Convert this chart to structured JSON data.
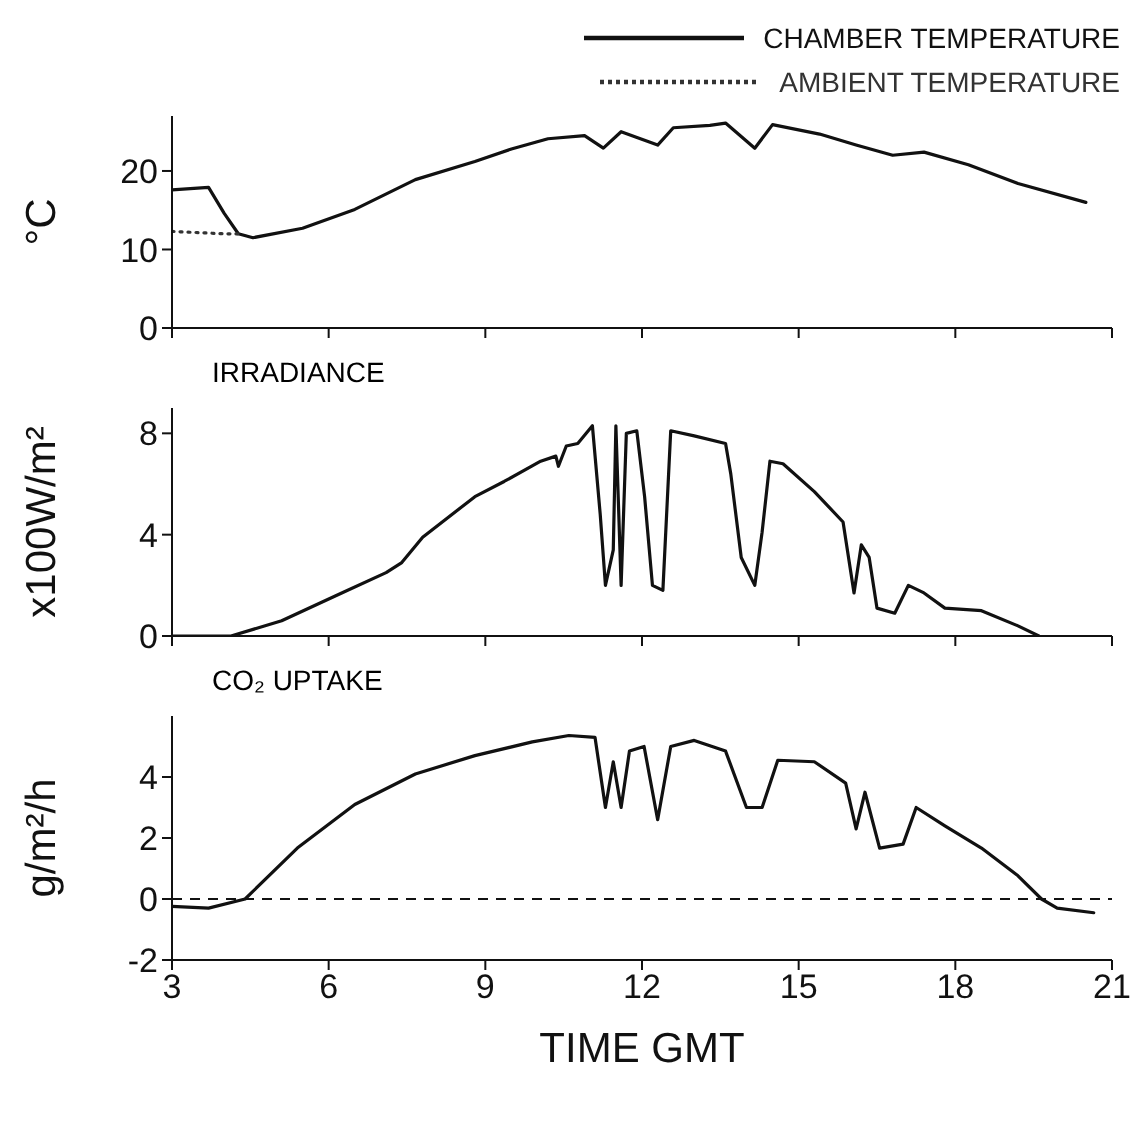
{
  "chart_data": [
    {
      "type": "line",
      "ylabel": "°C",
      "xlim": [
        3,
        21
      ],
      "xticks": [
        3,
        6,
        9,
        12,
        15,
        18,
        21
      ],
      "ylim": [
        0,
        27
      ],
      "yticks": [
        0,
        10,
        20
      ],
      "tick_labels": "y",
      "legend": "top right",
      "grid": false,
      "marker": "none",
      "series": [
        {
          "name": "CHAMBER TEMPERATURE",
          "color": "#111111",
          "line_style": "solid",
          "x": [
            3,
            3.7,
            4.0,
            4.27,
            4.55,
            5.5,
            6.5,
            7.66,
            8.8,
            9.5,
            10.2,
            10.9,
            11.26,
            11.6,
            11.97,
            12.3,
            12.6,
            13.3,
            13.6,
            14.16,
            14.5,
            15.4,
            16.1,
            16.8,
            17.4,
            18.25,
            19.2,
            20.5
          ],
          "values": [
            17.6,
            17.9,
            14.6,
            12.0,
            11.5,
            12.7,
            15.1,
            18.9,
            21.2,
            22.8,
            24.1,
            24.5,
            22.9,
            25.0,
            24.1,
            23.3,
            25.5,
            25.8,
            26.1,
            22.9,
            25.9,
            24.7,
            23.3,
            22.0,
            22.4,
            20.8,
            18.4,
            16.0
          ]
        },
        {
          "name": "AMBIENT TEMPERATURE",
          "color": "#333333",
          "line_style": "dotted",
          "x": [
            3,
            4.0,
            4.27
          ],
          "values": [
            12.3,
            12.0,
            12.0
          ]
        }
      ]
    },
    {
      "type": "line",
      "title": "IRRADIANCE",
      "ylabel": "x100W/m²",
      "xlim": [
        3,
        21
      ],
      "xticks": [
        3,
        6,
        9,
        12,
        15,
        18,
        21
      ],
      "ylim": [
        0,
        9
      ],
      "yticks": [
        0,
        4,
        8
      ],
      "tick_labels": "y",
      "grid": false,
      "marker": "none",
      "series": [
        {
          "color": "#111111",
          "line_style": "solid",
          "x": [
            3,
            4.13,
            5.1,
            6.25,
            7.1,
            7.4,
            7.8,
            8.8,
            9.36,
            10.06,
            10.35,
            10.4,
            10.55,
            10.77,
            11.05,
            11.2,
            11.3,
            11.45,
            11.5,
            11.6,
            11.7,
            11.9,
            12.05,
            12.2,
            12.4,
            12.55,
            13.0,
            13.6,
            13.7,
            13.9,
            14.16,
            14.3,
            14.45,
            14.7,
            15.3,
            15.85,
            16.06,
            16.2,
            16.35,
            16.5,
            16.84,
            17.1,
            17.4,
            17.8,
            18.5,
            19.2,
            19.6
          ],
          "values": [
            0,
            0,
            0.6,
            1.7,
            2.5,
            2.9,
            3.9,
            5.5,
            6.1,
            6.9,
            7.1,
            6.7,
            7.5,
            7.6,
            8.3,
            4.8,
            2.0,
            3.4,
            8.3,
            2.0,
            8.0,
            8.1,
            5.5,
            2.0,
            1.8,
            8.1,
            7.9,
            7.6,
            6.4,
            3.1,
            2.0,
            4.1,
            6.9,
            6.8,
            5.7,
            4.5,
            1.7,
            3.6,
            3.1,
            1.1,
            0.9,
            2.0,
            1.7,
            1.1,
            1.0,
            0.4,
            0
          ]
        }
      ]
    },
    {
      "type": "line",
      "title": "CO₂ UPTAKE",
      "xlabel": "TIME GMT",
      "ylabel": "g/m²/h",
      "xlim": [
        3,
        21
      ],
      "xticks": [
        3,
        6,
        9,
        12,
        15,
        18,
        21
      ],
      "ylim": [
        -2,
        6
      ],
      "yticks": [
        -2,
        0,
        2,
        4
      ],
      "grid": false,
      "marker": "none",
      "ref_lines": [
        {
          "axis": "y",
          "value": 0,
          "color": "#111111",
          "line_style": "dashed"
        }
      ],
      "series": [
        {
          "color": "#111111",
          "line_style": "solid",
          "x": [
            3,
            3.7,
            4.4,
            5.4,
            6.5,
            7.66,
            8.8,
            9.9,
            10.6,
            11.1,
            11.3,
            11.45,
            11.6,
            11.76,
            12.04,
            12.3,
            12.55,
            13.0,
            13.6,
            14.0,
            14.3,
            14.6,
            15.3,
            15.9,
            16.1,
            16.27,
            16.55,
            17.0,
            17.25,
            17.8,
            18.5,
            19.2,
            19.65,
            19.95,
            20.65
          ],
          "values": [
            -0.24,
            -0.3,
            0,
            1.67,
            3.1,
            4.1,
            4.7,
            5.15,
            5.36,
            5.3,
            3.0,
            4.5,
            3.0,
            4.85,
            5.0,
            2.6,
            5.0,
            5.2,
            4.85,
            3.0,
            3.0,
            4.55,
            4.5,
            3.8,
            2.3,
            3.5,
            1.67,
            1.8,
            3.0,
            2.4,
            1.67,
            0.76,
            0,
            -0.3,
            -0.45
          ]
        }
      ]
    }
  ]
}
